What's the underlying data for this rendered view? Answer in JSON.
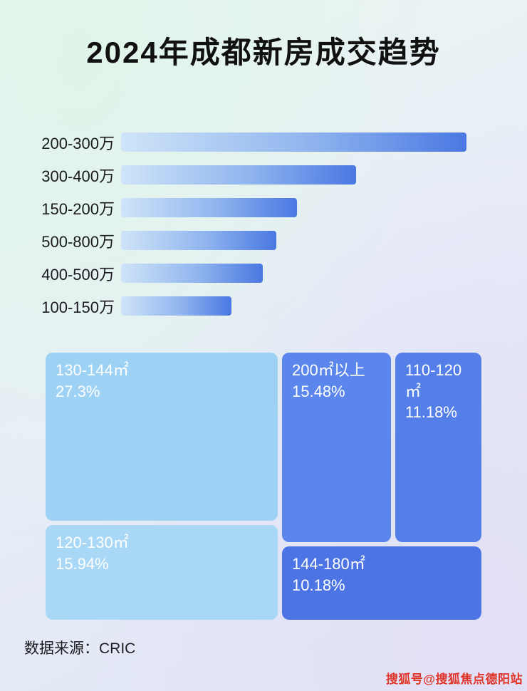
{
  "page": {
    "title": "2024年成都新房成交趋势",
    "source_label": "数据来源：CRIC",
    "watermark": "搜狐号@搜狐焦点德阳站"
  },
  "colors": {
    "bar_gradient_start": "#cfe4f8",
    "bar_gradient_end": "#4a78e2",
    "treemap_light_blue": "#9ed2f4",
    "treemap_lighter_blue": "#a9d8f6",
    "treemap_medium_blue": "#5b86ec",
    "treemap_medium_blue_2": "#547fe9",
    "treemap_dark_blue": "#4c74e5",
    "watermark_red": "#e03528",
    "title_color": "#111111"
  },
  "chart_data": [
    {
      "type": "bar",
      "orientation": "horizontal",
      "title": "2024年成都新房成交趋势",
      "categories": [
        "200-300万",
        "300-400万",
        "150-200万",
        "500-800万",
        "400-500万",
        "100-150万"
      ],
      "values": [
        100,
        68,
        51,
        45,
        41,
        32
      ],
      "value_note": "relative bar length percent of longest bar; no numeric labels shown in image",
      "xlabel": "",
      "ylabel": "",
      "grid": false,
      "legend": false
    },
    {
      "type": "treemap",
      "title": "",
      "items": [
        {
          "label": "130-144㎡",
          "percent": "27.3%",
          "value": 27.3
        },
        {
          "label": "200㎡以上",
          "percent": "15.48%",
          "value": 15.48
        },
        {
          "label": "110-120㎡",
          "percent": "11.18%",
          "value": 11.18
        },
        {
          "label": "120-130㎡",
          "percent": "15.94%",
          "value": 15.94
        },
        {
          "label": "144-180㎡",
          "percent": "10.18%",
          "value": 10.18
        }
      ]
    }
  ]
}
